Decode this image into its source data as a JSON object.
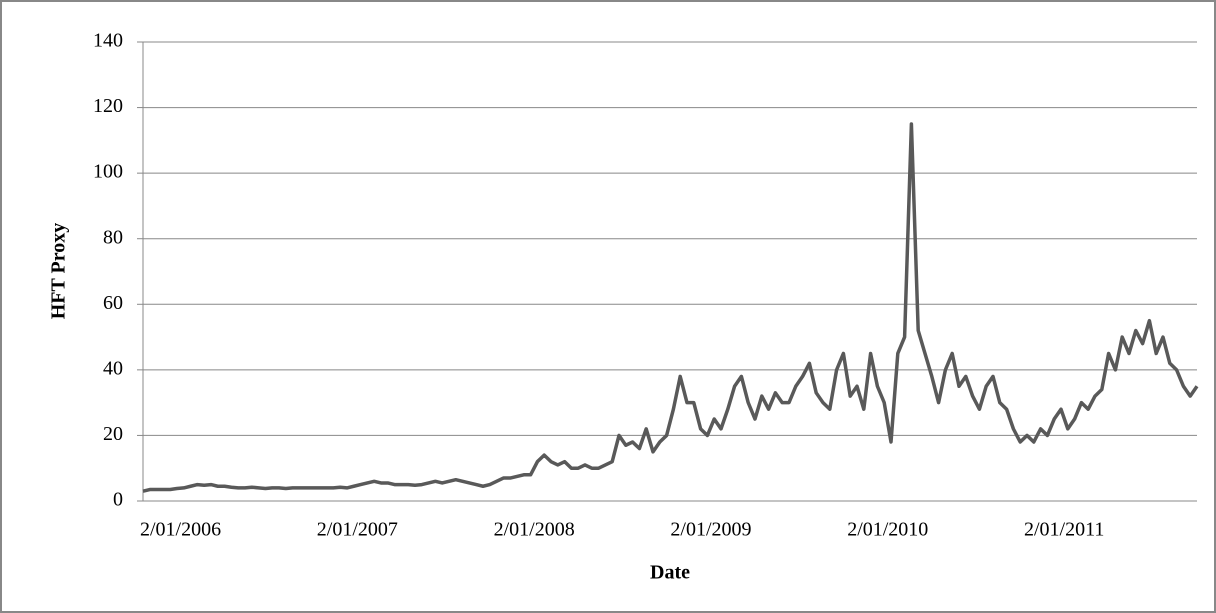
{
  "chart_data": {
    "type": "line",
    "x_label": "Date",
    "y_label": "HFT Proxy",
    "categories": [
      "2/01/2006",
      null,
      null,
      null,
      null,
      null,
      null,
      null,
      null,
      null,
      null,
      null,
      null,
      null,
      null,
      null,
      null,
      null,
      null,
      null,
      null,
      null,
      null,
      null,
      null,
      null,
      "2/01/2007",
      null,
      null,
      null,
      null,
      null,
      null,
      null,
      null,
      null,
      null,
      null,
      null,
      null,
      null,
      null,
      null,
      null,
      null,
      null,
      null,
      null,
      null,
      null,
      null,
      null,
      "2/01/2008",
      null,
      null,
      null,
      null,
      null,
      null,
      null,
      null,
      null,
      null,
      null,
      null,
      null,
      null,
      null,
      null,
      null,
      null,
      null,
      null,
      null,
      null,
      null,
      null,
      null,
      "2/01/2009",
      null,
      null,
      null,
      null,
      null,
      null,
      null,
      null,
      null,
      null,
      null,
      null,
      null,
      null,
      null,
      null,
      null,
      null,
      null,
      null,
      null,
      null,
      null,
      null,
      null,
      "2/01/2010",
      null,
      null,
      null,
      null,
      null,
      null,
      null,
      null,
      null,
      null,
      null,
      null,
      null,
      null,
      null,
      null,
      null,
      null,
      null,
      null,
      null,
      null,
      null,
      null,
      null,
      "2/01/2011",
      null,
      null,
      null,
      null,
      null,
      null,
      null,
      null,
      null,
      null,
      null,
      null,
      null,
      null,
      null,
      null,
      null,
      null,
      null,
      null,
      null,
      null,
      null,
      null,
      null
    ],
    "values": [
      3,
      3.5,
      3.5,
      3.5,
      3.5,
      3.8,
      4,
      4.5,
      5,
      4.8,
      5,
      4.5,
      4.5,
      4.2,
      4,
      4,
      4.2,
      4,
      3.8,
      4,
      4,
      3.8,
      4,
      4,
      4,
      4,
      4,
      4,
      4,
      4.2,
      4,
      4.5,
      5,
      5.5,
      6,
      5.5,
      5.5,
      5,
      5,
      5,
      4.8,
      5,
      5.5,
      6,
      5.5,
      6,
      6.5,
      6,
      5.5,
      5,
      4.5,
      5,
      6,
      7,
      7,
      7.5,
      8,
      8,
      12,
      14,
      12,
      11,
      12,
      10,
      10,
      11,
      10,
      10,
      11,
      12,
      20,
      17,
      18,
      16,
      22,
      15,
      18,
      20,
      28,
      38,
      30,
      30,
      22,
      20,
      25,
      22,
      28,
      35,
      38,
      30,
      25,
      32,
      28,
      33,
      30,
      30,
      35,
      38,
      42,
      33,
      30,
      28,
      40,
      45,
      32,
      35,
      28,
      45,
      35,
      30,
      18,
      45,
      50,
      115,
      52,
      45,
      38,
      30,
      40,
      45,
      35,
      38,
      32,
      28,
      35,
      38,
      30,
      28,
      22,
      18,
      20,
      18,
      22,
      20,
      25,
      28,
      22,
      25,
      30,
      28,
      32,
      34,
      45,
      40,
      50,
      45,
      52,
      48,
      55,
      45,
      50,
      42,
      40,
      35,
      32,
      35
    ],
    "color": "#595959",
    "ylim": [
      0,
      140
    ],
    "yticks": [
      0,
      20,
      40,
      60,
      80,
      100,
      120,
      140
    ],
    "grid": true
  }
}
